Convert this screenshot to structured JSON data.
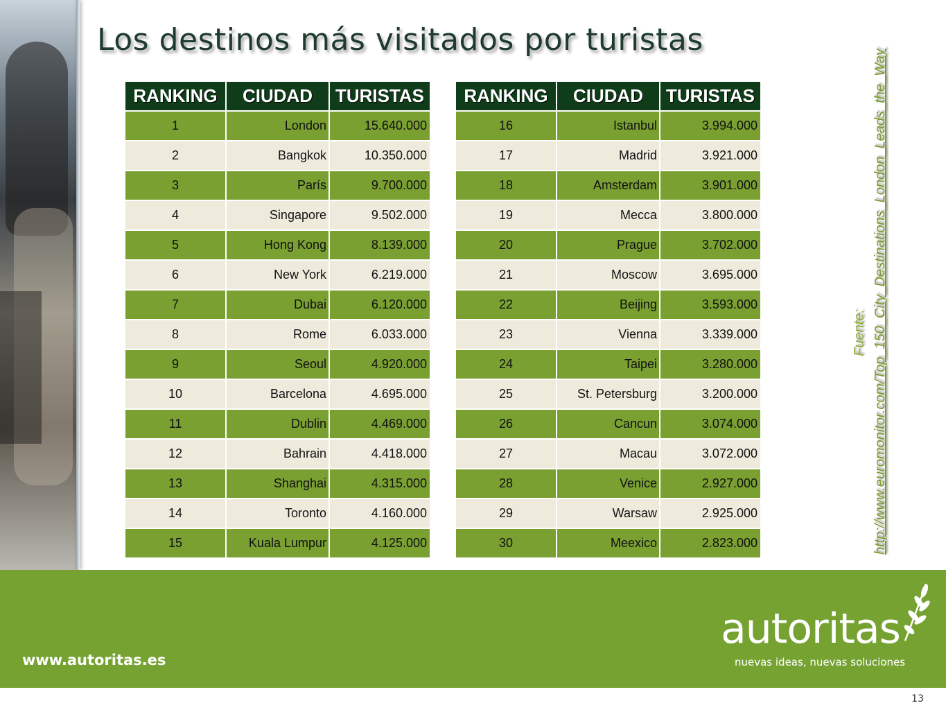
{
  "title": "Los destinos más visitados por turistas",
  "table": {
    "headers": [
      "RANKING",
      "CIUDAD",
      "TURISTAS"
    ],
    "left_rows": [
      {
        "rank": "1",
        "city": "London",
        "tourists": "15.640.000"
      },
      {
        "rank": "2",
        "city": "Bangkok",
        "tourists": "10.350.000"
      },
      {
        "rank": "3",
        "city": "París",
        "tourists": "9.700.000"
      },
      {
        "rank": "4",
        "city": "Singapore",
        "tourists": "9.502.000"
      },
      {
        "rank": "5",
        "city": "Hong Kong",
        "tourists": "8.139.000"
      },
      {
        "rank": "6",
        "city": "New York",
        "tourists": "6.219.000"
      },
      {
        "rank": "7",
        "city": "Dubai",
        "tourists": "6.120.000"
      },
      {
        "rank": "8",
        "city": "Rome",
        "tourists": "6.033.000"
      },
      {
        "rank": "9",
        "city": "Seoul",
        "tourists": "4.920.000"
      },
      {
        "rank": "10",
        "city": "Barcelona",
        "tourists": "4.695.000"
      },
      {
        "rank": "11",
        "city": "Dublin",
        "tourists": "4.469.000"
      },
      {
        "rank": "12",
        "city": "Bahrain",
        "tourists": "4.418.000"
      },
      {
        "rank": "13",
        "city": "Shanghai",
        "tourists": "4.315.000"
      },
      {
        "rank": "14",
        "city": "Toronto",
        "tourists": "4.160.000"
      },
      {
        "rank": "15",
        "city": "Kuala Lumpur",
        "tourists": "4.125.000"
      }
    ],
    "right_rows": [
      {
        "rank": "16",
        "city": "Istanbul",
        "tourists": "3.994.000"
      },
      {
        "rank": "17",
        "city": "Madrid",
        "tourists": "3.921.000"
      },
      {
        "rank": "18",
        "city": "Amsterdam",
        "tourists": "3.901.000"
      },
      {
        "rank": "19",
        "city": "Mecca",
        "tourists": "3.800.000"
      },
      {
        "rank": "20",
        "city": "Prague",
        "tourists": "3.702.000"
      },
      {
        "rank": "21",
        "city": "Moscow",
        "tourists": "3.695.000"
      },
      {
        "rank": "22",
        "city": "Beijing",
        "tourists": "3.593.000"
      },
      {
        "rank": "23",
        "city": "Vienna",
        "tourists": "3.339.000"
      },
      {
        "rank": "24",
        "city": "Taipei",
        "tourists": "3.280.000"
      },
      {
        "rank": "25",
        "city": "St. Petersburg",
        "tourists": "3.200.000"
      },
      {
        "rank": "26",
        "city": "Cancun",
        "tourists": "3.074.000"
      },
      {
        "rank": "27",
        "city": "Macau",
        "tourists": "3.072.000"
      },
      {
        "rank": "28",
        "city": "Venice",
        "tourists": "2.927.000"
      },
      {
        "rank": "29",
        "city": "Warsaw",
        "tourists": "2.925.000"
      },
      {
        "rank": "30",
        "city": "Meexico",
        "tourists": "2.823.000"
      }
    ]
  },
  "source": {
    "label": "Fuente:",
    "link": "http://www.euromonitor.com/Top_150_City_Destinations_London_Leads_the_Way"
  },
  "footer": {
    "url": "www.autoritas.es",
    "logo_name": "autoritas",
    "logo_tagline": "nuevas ideas, nuevas soluciones",
    "logo_icon": "laurel-leaf-icon"
  },
  "page_number": "13",
  "colors": {
    "header_bg": "#0f3d1a",
    "row_green": "#7aa032",
    "row_cream": "#eeebdd",
    "footer_bg": "#76a232",
    "title": "#1f3b2e"
  }
}
